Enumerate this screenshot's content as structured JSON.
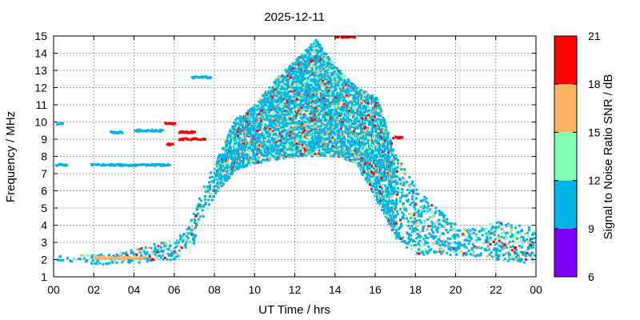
{
  "chart_data": {
    "type": "heatmap",
    "title": "2025-12-11",
    "xlabel": "UT Time / hrs",
    "ylabel": "Frequency / MHz",
    "xlim": [
      0,
      24
    ],
    "ylim": [
      1,
      15
    ],
    "x_ticks": [
      "00",
      "02",
      "04",
      "06",
      "08",
      "10",
      "12",
      "14",
      "16",
      "18",
      "20",
      "22",
      "00"
    ],
    "y_ticks": [
      "1",
      "2",
      "3",
      "4",
      "5",
      "6",
      "7",
      "8",
      "9",
      "10",
      "11",
      "12",
      "13",
      "14",
      "15"
    ],
    "grid": true,
    "colorbar": {
      "label": "Signal to Noise Ratio SNR / dB",
      "range": [
        6,
        21
      ],
      "ticks": [
        "6",
        "9",
        "12",
        "15",
        "18",
        "21"
      ],
      "bands": [
        {
          "from": 6,
          "to": 9,
          "color": "#7f00ff"
        },
        {
          "from": 9,
          "to": 12,
          "color": "#00b4e6"
        },
        {
          "from": 12,
          "to": 15,
          "color": "#80ffb4"
        },
        {
          "from": 15,
          "to": 18,
          "color": "#ffb464"
        },
        {
          "from": 18,
          "to": 21,
          "color": "#ff0000"
        }
      ]
    },
    "base_profile": [
      {
        "time": 0,
        "low": 2.0,
        "high": 2.2
      },
      {
        "time": 2,
        "low": 1.7,
        "high": 2.3
      },
      {
        "time": 4,
        "low": 1.8,
        "high": 2.6
      },
      {
        "time": 6,
        "low": 2.0,
        "high": 3.2
      },
      {
        "time": 6.5,
        "low": 2.6,
        "high": 3.6
      },
      {
        "time": 7,
        "low": 3.0,
        "high": 5.0
      },
      {
        "time": 7.5,
        "low": 4.5,
        "high": 6.5
      },
      {
        "time": 8,
        "low": 5.8,
        "high": 7.6
      },
      {
        "time": 9,
        "low": 7.2,
        "high": 10.2
      },
      {
        "time": 10,
        "low": 7.6,
        "high": 11.0
      },
      {
        "time": 11,
        "low": 7.8,
        "high": 12.5
      },
      {
        "time": 12,
        "low": 8.0,
        "high": 13.6
      },
      {
        "time": 13,
        "low": 8.0,
        "high": 14.8
      },
      {
        "time": 14,
        "low": 8.0,
        "high": 13.2
      },
      {
        "time": 15,
        "low": 7.6,
        "high": 12.0
      },
      {
        "time": 16,
        "low": 5.5,
        "high": 11.5
      },
      {
        "time": 17,
        "low": 3.2,
        "high": 8.0
      },
      {
        "time": 18,
        "low": 2.2,
        "high": 6.2
      },
      {
        "time": 19,
        "low": 2.3,
        "high": 5.0
      },
      {
        "time": 20,
        "low": 2.2,
        "high": 4.0
      },
      {
        "time": 21,
        "low": 2.2,
        "high": 3.8
      },
      {
        "time": 22,
        "low": 2.0,
        "high": 4.2
      },
      {
        "time": 23,
        "low": 1.8,
        "high": 4.0
      },
      {
        "time": 24,
        "low": 1.8,
        "high": 3.8
      }
    ],
    "traces": [
      {
        "t0": 0.0,
        "t1": 0.6,
        "freq": 7.5,
        "snr": 10.5
      },
      {
        "t0": 0.0,
        "t1": 0.4,
        "freq": 9.9,
        "snr": 10.0
      },
      {
        "t0": 1.8,
        "t1": 5.8,
        "freq": 7.5,
        "snr": 10.5
      },
      {
        "t0": 2.8,
        "t1": 3.4,
        "freq": 9.4,
        "snr": 10.0
      },
      {
        "t0": 4.0,
        "t1": 5.4,
        "freq": 9.5,
        "snr": 10.0
      },
      {
        "t0": 5.5,
        "t1": 6.0,
        "freq": 9.9,
        "snr": 19.5
      },
      {
        "t0": 5.6,
        "t1": 5.9,
        "freq": 8.7,
        "snr": 19.5
      },
      {
        "t0": 6.2,
        "t1": 7.5,
        "freq": 9.0,
        "snr": 19.0
      },
      {
        "t0": 6.2,
        "t1": 7.0,
        "freq": 9.4,
        "snr": 19.0
      },
      {
        "t0": 6.8,
        "t1": 7.8,
        "freq": 12.6,
        "snr": 10.5
      },
      {
        "t0": 14.0,
        "t1": 15.0,
        "freq": 14.95,
        "snr": 20.0
      },
      {
        "t0": 16.8,
        "t1": 17.3,
        "freq": 9.1,
        "snr": 19.5
      },
      {
        "t0": 2.0,
        "t1": 4.5,
        "freq": 2.1,
        "snr": 16.0
      }
    ]
  }
}
